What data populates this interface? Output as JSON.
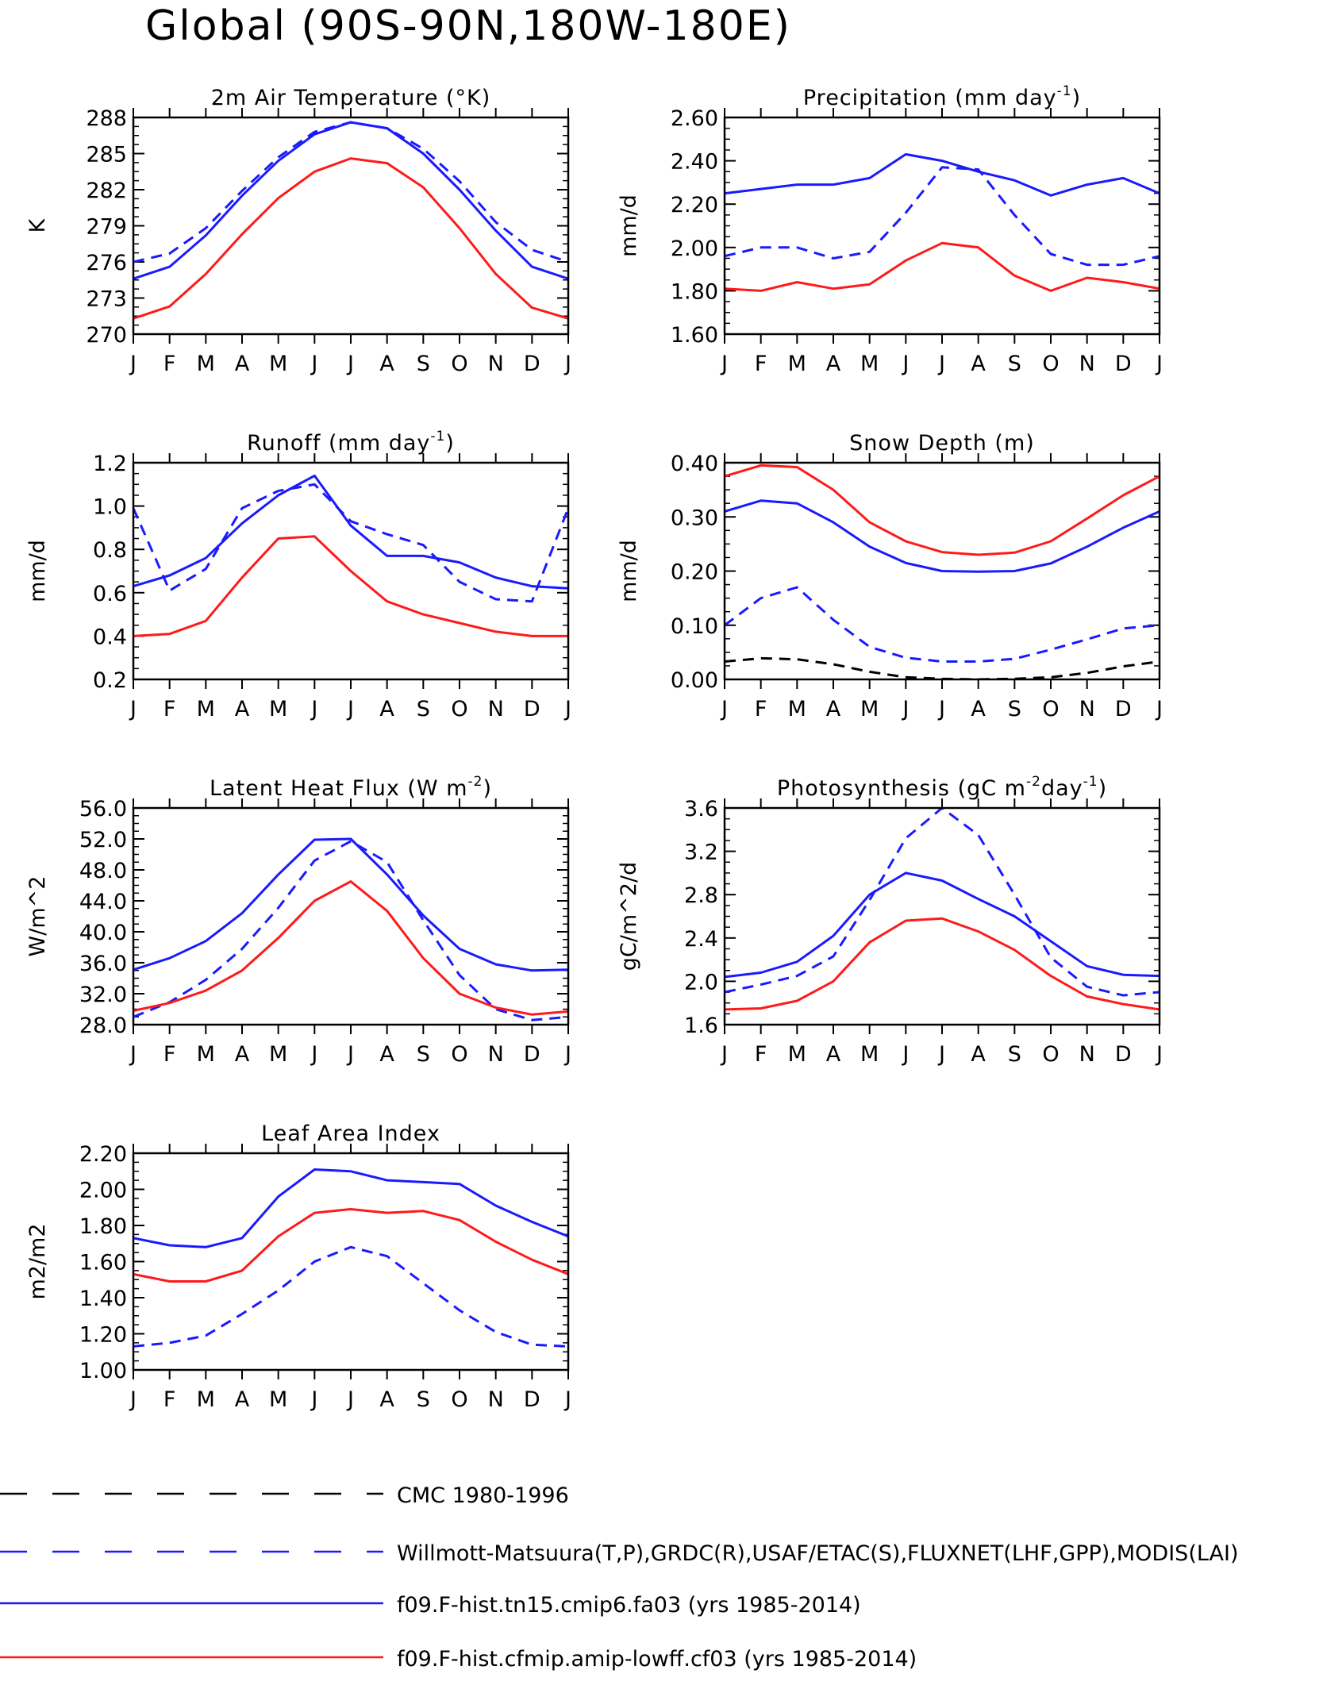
{
  "title": "Global (90S-90N,180W-180E)",
  "months": [
    "J",
    "F",
    "M",
    "A",
    "M",
    "J",
    "J",
    "A",
    "S",
    "O",
    "N",
    "D",
    "J"
  ],
  "colors": {
    "obs": "#1a1aff",
    "model1": "#1a1aff",
    "model2": "#ff1a1a",
    "cmc": "#000000"
  },
  "legend": [
    {
      "label": "CMC 1980-1996",
      "color": "#000000",
      "style": "dashed"
    },
    {
      "label": "Willmott-Matsuura(T,P),GRDC(R),USAF/ETAC(S),FLUXNET(LHF,GPP),MODIS(LAI)",
      "color": "#1a1aff",
      "style": "dashed"
    },
    {
      "label": "f09.F-hist.tn15.cmip6.fa03 (yrs 1985-2014)",
      "color": "#1a1aff",
      "style": "solid"
    },
    {
      "label": "f09.F-hist.cfmip.amip-lowff.cf03 (yrs 1985-2014)",
      "color": "#ff1a1a",
      "style": "solid"
    }
  ],
  "chart_data": [
    {
      "type": "line",
      "title": "2m Air Temperature (°K)",
      "ylabel": "K",
      "ylim": [
        270,
        288
      ],
      "yticks": [
        270,
        273,
        276,
        279,
        282,
        285,
        288
      ],
      "ydecimals": 0,
      "series": [
        {
          "key": "obs",
          "style": "dashed",
          "values": [
            276.0,
            276.7,
            278.8,
            281.9,
            284.7,
            286.8,
            287.6,
            287.1,
            285.4,
            282.7,
            279.3,
            277.0,
            276.0
          ]
        },
        {
          "key": "model1",
          "style": "solid",
          "values": [
            274.6,
            275.6,
            278.2,
            281.5,
            284.4,
            286.6,
            287.6,
            287.1,
            285.0,
            282.0,
            278.6,
            275.6,
            274.6
          ]
        },
        {
          "key": "model2",
          "style": "solid",
          "values": [
            271.3,
            272.3,
            275.0,
            278.3,
            281.3,
            283.5,
            284.6,
            284.2,
            282.2,
            278.8,
            275.0,
            272.2,
            271.3
          ]
        }
      ]
    },
    {
      "type": "line",
      "title": "Precipitation (mm day",
      "title_sup": "-1",
      "title_end": ")",
      "ylabel": "mm/d",
      "ylim": [
        1.6,
        2.6
      ],
      "yticks": [
        1.6,
        1.8,
        2.0,
        2.2,
        2.4,
        2.6
      ],
      "ydecimals": 2,
      "series": [
        {
          "key": "obs",
          "style": "dashed",
          "values": [
            1.96,
            2.0,
            2.0,
            1.95,
            1.98,
            2.16,
            2.37,
            2.36,
            2.15,
            1.97,
            1.92,
            1.92,
            1.96
          ]
        },
        {
          "key": "model1",
          "style": "solid",
          "values": [
            2.25,
            2.27,
            2.29,
            2.29,
            2.32,
            2.43,
            2.4,
            2.35,
            2.31,
            2.24,
            2.29,
            2.32,
            2.25
          ]
        },
        {
          "key": "model2",
          "style": "solid",
          "values": [
            1.81,
            1.8,
            1.84,
            1.81,
            1.83,
            1.94,
            2.02,
            2.0,
            1.87,
            1.8,
            1.86,
            1.84,
            1.81
          ]
        }
      ]
    },
    {
      "type": "line",
      "title": "Runoff (mm day",
      "title_sup": "-1",
      "title_end": ")",
      "ylabel": "mm/d",
      "ylim": [
        0.2,
        1.2
      ],
      "yticks": [
        0.2,
        0.4,
        0.6,
        0.8,
        1.0,
        1.2
      ],
      "ydecimals": 1,
      "series": [
        {
          "key": "obs",
          "style": "dashed",
          "values": [
            0.99,
            0.61,
            0.71,
            0.99,
            1.07,
            1.1,
            0.93,
            0.87,
            0.82,
            0.65,
            0.57,
            0.56,
            0.99
          ]
        },
        {
          "key": "model1",
          "style": "solid",
          "values": [
            0.63,
            0.68,
            0.76,
            0.92,
            1.05,
            1.14,
            0.91,
            0.77,
            0.77,
            0.74,
            0.67,
            0.63,
            0.62
          ]
        },
        {
          "key": "model2",
          "style": "solid",
          "values": [
            0.4,
            0.41,
            0.47,
            0.67,
            0.85,
            0.86,
            0.7,
            0.56,
            0.5,
            0.46,
            0.42,
            0.4,
            0.4
          ]
        }
      ]
    },
    {
      "type": "line",
      "title": "Snow Depth (m)",
      "ylabel": "mm/d",
      "ylim": [
        0.0,
        0.4
      ],
      "yticks": [
        0.0,
        0.1,
        0.2,
        0.3,
        0.4
      ],
      "ydecimals": 2,
      "series": [
        {
          "key": "cmc",
          "style": "dashed",
          "values": [
            0.033,
            0.039,
            0.037,
            0.028,
            0.014,
            0.004,
            0.001,
            0.0,
            0.001,
            0.004,
            0.012,
            0.024,
            0.033
          ]
        },
        {
          "key": "obs",
          "style": "dashed",
          "values": [
            0.1,
            0.15,
            0.17,
            0.11,
            0.06,
            0.04,
            0.033,
            0.033,
            0.038,
            0.055,
            0.074,
            0.094,
            0.1
          ]
        },
        {
          "key": "model1",
          "style": "solid",
          "values": [
            0.31,
            0.33,
            0.325,
            0.29,
            0.245,
            0.215,
            0.2,
            0.199,
            0.2,
            0.214,
            0.245,
            0.28,
            0.31
          ]
        },
        {
          "key": "model2",
          "style": "solid",
          "values": [
            0.375,
            0.395,
            0.392,
            0.35,
            0.29,
            0.255,
            0.235,
            0.23,
            0.234,
            0.255,
            0.297,
            0.34,
            0.375
          ]
        }
      ]
    },
    {
      "type": "line",
      "title": "Latent Heat Flux (W m",
      "title_sup": "-2",
      "title_end": ")",
      "ylabel": "W/m^2",
      "ylim": [
        28,
        56
      ],
      "yticks": [
        28,
        32,
        36,
        40,
        44,
        48,
        52,
        56
      ],
      "ydecimals": 1,
      "series": [
        {
          "key": "obs",
          "style": "dashed",
          "values": [
            29.0,
            30.9,
            33.8,
            37.8,
            43.1,
            49.2,
            51.7,
            49.0,
            41.5,
            34.4,
            30.0,
            28.6,
            29.0
          ]
        },
        {
          "key": "model1",
          "style": "solid",
          "values": [
            35.1,
            36.6,
            38.8,
            42.4,
            47.4,
            51.9,
            52.0,
            47.4,
            42.1,
            37.8,
            35.8,
            35.0,
            35.1
          ]
        },
        {
          "key": "model2",
          "style": "solid",
          "values": [
            29.8,
            30.8,
            32.4,
            35.0,
            39.2,
            44.0,
            46.5,
            42.7,
            36.6,
            32.0,
            30.2,
            29.3,
            29.7
          ]
        }
      ]
    },
    {
      "type": "line",
      "title": "Photosynthesis (gC m",
      "title_sup": "-2",
      "title_mid": "day",
      "title_sup2": "-1",
      "title_end": ")",
      "ylabel": "gC/m^2/d",
      "ylim": [
        1.6,
        3.6
      ],
      "yticks": [
        1.6,
        2.0,
        2.4,
        2.8,
        3.2,
        3.6
      ],
      "ydecimals": 1,
      "series": [
        {
          "key": "obs",
          "style": "dashed",
          "values": [
            1.9,
            1.97,
            2.05,
            2.23,
            2.75,
            3.32,
            3.6,
            3.35,
            2.8,
            2.22,
            1.95,
            1.87,
            1.9
          ]
        },
        {
          "key": "model1",
          "style": "solid",
          "values": [
            2.04,
            2.08,
            2.18,
            2.42,
            2.8,
            3.0,
            2.93,
            2.76,
            2.6,
            2.37,
            2.14,
            2.06,
            2.05
          ]
        },
        {
          "key": "model2",
          "style": "solid",
          "values": [
            1.74,
            1.75,
            1.82,
            2.0,
            2.36,
            2.56,
            2.58,
            2.46,
            2.29,
            2.05,
            1.86,
            1.79,
            1.74
          ]
        }
      ]
    },
    {
      "type": "line",
      "title": "Leaf Area Index",
      "ylabel": "m2/m2",
      "ylim": [
        1.0,
        2.2
      ],
      "yticks": [
        1.0,
        1.2,
        1.4,
        1.6,
        1.8,
        2.0,
        2.2
      ],
      "ydecimals": 2,
      "series": [
        {
          "key": "obs",
          "style": "dashed",
          "values": [
            1.13,
            1.15,
            1.19,
            1.31,
            1.44,
            1.6,
            1.68,
            1.63,
            1.48,
            1.33,
            1.21,
            1.14,
            1.13
          ]
        },
        {
          "key": "model1",
          "style": "solid",
          "values": [
            1.73,
            1.69,
            1.68,
            1.73,
            1.96,
            2.11,
            2.1,
            2.05,
            2.04,
            2.03,
            1.91,
            1.82,
            1.74
          ]
        },
        {
          "key": "model2",
          "style": "solid",
          "values": [
            1.53,
            1.49,
            1.49,
            1.55,
            1.74,
            1.87,
            1.89,
            1.87,
            1.88,
            1.83,
            1.71,
            1.61,
            1.53
          ]
        }
      ]
    }
  ]
}
